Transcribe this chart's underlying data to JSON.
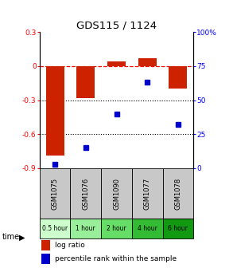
{
  "title": "GDS115 / 1124",
  "samples": [
    "GSM1075",
    "GSM1076",
    "GSM1090",
    "GSM1077",
    "GSM1078"
  ],
  "time_labels": [
    "0.5 hour",
    "1 hour",
    "2 hour",
    "4 hour",
    "6 hour"
  ],
  "log_ratios": [
    -0.79,
    -0.28,
    0.04,
    0.07,
    -0.2
  ],
  "percentile_ranks": [
    3,
    15,
    40,
    63,
    32
  ],
  "bar_color": "#cc2200",
  "dot_color": "#0000cc",
  "ylim_left": [
    -0.9,
    0.3
  ],
  "ylim_right": [
    0,
    100
  ],
  "yticks_left": [
    0.3,
    0.0,
    -0.3,
    -0.6,
    -0.9
  ],
  "yticks_right": [
    100,
    75,
    50,
    25,
    0
  ],
  "sample_bg": "#c8c8c8",
  "time_colors": [
    "#ccffcc",
    "#99ee99",
    "#66dd66",
    "#33bb33",
    "#119911"
  ],
  "legend_log": "log ratio",
  "legend_pct": "percentile rank within the sample"
}
